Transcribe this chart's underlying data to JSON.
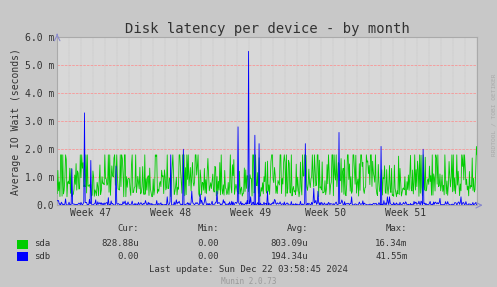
{
  "title": "Disk latency per device - by month",
  "ylabel": "Average IO Wait (seconds)",
  "background_color": "#c8c8c8",
  "plot_bg_color": "#d8d8d8",
  "title_fontsize": 10,
  "axis_fontsize": 7,
  "tick_fontsize": 7,
  "sda_color": "#00cc00",
  "sdb_color": "#0000ff",
  "ytick_vals": [
    0.0,
    0.001,
    0.002,
    0.003,
    0.004,
    0.005,
    0.006
  ],
  "ytick_labels": [
    "0.0",
    "1.0 m",
    "2.0 m",
    "3.0 m",
    "4.0 m",
    "5.0 m",
    "6.0 m"
  ],
  "x_tick_labels": [
    "Week 47",
    "Week 48",
    "Week 49",
    "Week 50",
    "Week 51"
  ],
  "ylim": [
    0.0,
    0.006
  ],
  "rrdtool_text": "RRDTOOL / TOBI OETIKER",
  "legend_header": [
    "Cur:",
    "Min:",
    "Avg:",
    "Max:"
  ],
  "legend_rows": [
    {
      "name": "sda",
      "color": "#00cc00",
      "vals": [
        "828.88u",
        "0.00",
        "803.09u",
        "16.34m"
      ]
    },
    {
      "name": "sdb",
      "color": "#0000ff",
      "vals": [
        "0.00",
        "0.00",
        "194.34u",
        "41.55m"
      ]
    }
  ],
  "footer_text": "Last update: Sun Dec 22 03:58:45 2024",
  "munin_text": "Munin 2.0.73",
  "num_points": 600
}
